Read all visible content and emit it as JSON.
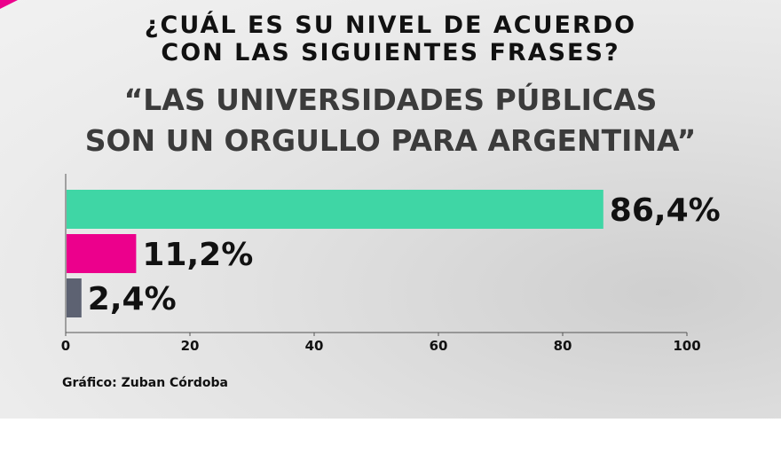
{
  "header": {
    "question_line1": "¿CUÁL ES SU NIVEL DE ACUERDO",
    "question_line2": "CON LAS SIGUIENTES FRASES?",
    "statement_line1": "“LAS UNIVERSIDADES PÚBLICAS",
    "statement_line2": "SON UN ORGULLO PARA ARGENTINA”"
  },
  "source": "Gráfico: Zuban Córdoba",
  "chart_data": {
    "type": "bar",
    "orientation": "horizontal",
    "values": [
      86.4,
      11.2,
      2.4
    ],
    "value_labels": [
      "86,4%",
      "11,2%",
      "2,4%"
    ],
    "colors": [
      "#3fd6a5",
      "#ec008c",
      "#5d6272"
    ],
    "xlim": [
      0,
      100
    ],
    "xticks": [
      0,
      20,
      40,
      60,
      80,
      100
    ],
    "title": "",
    "xlabel": "",
    "ylabel": "",
    "grid": false,
    "legend": "none"
  }
}
